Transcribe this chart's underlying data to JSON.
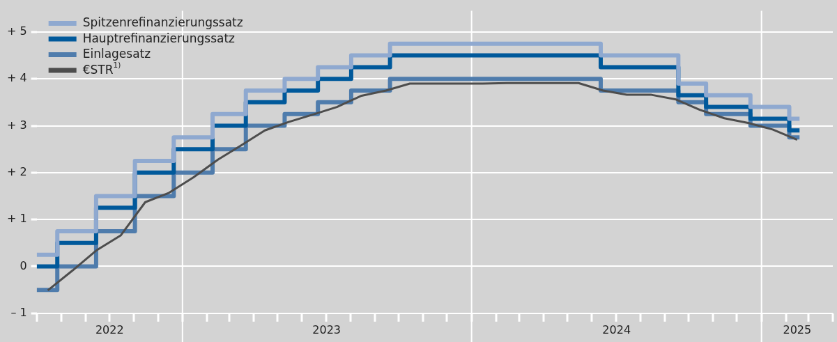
{
  "chart_data": {
    "type": "step",
    "series": [
      {
        "name": "Spitzenrefinanzierungssatz",
        "color": "#8fa9d0",
        "x": [
          "2022-07-01",
          "2022-07-27",
          "2022-09-14",
          "2022-11-02",
          "2022-12-21",
          "2023-02-08",
          "2023-03-22",
          "2023-05-10",
          "2023-06-21",
          "2023-08-02",
          "2023-09-20",
          "2024-06-12",
          "2024-09-18",
          "2024-10-23",
          "2024-12-18",
          "2025-02-05",
          "2025-02-18"
        ],
        "values": [
          0.25,
          0.75,
          1.5,
          2.25,
          2.75,
          3.25,
          3.75,
          4.0,
          4.25,
          4.5,
          4.75,
          4.5,
          3.9,
          3.65,
          3.4,
          3.15,
          3.15
        ]
      },
      {
        "name": "Hauptrefinanzierungssatz",
        "color": "#00599b",
        "x": [
          "2022-07-01",
          "2022-07-27",
          "2022-09-14",
          "2022-11-02",
          "2022-12-21",
          "2023-02-08",
          "2023-03-22",
          "2023-05-10",
          "2023-06-21",
          "2023-08-02",
          "2023-09-20",
          "2024-06-12",
          "2024-09-18",
          "2024-10-23",
          "2024-12-18",
          "2025-02-05",
          "2025-02-18"
        ],
        "values": [
          0,
          0.5,
          1.25,
          2.0,
          2.5,
          3.0,
          3.5,
          3.75,
          4.0,
          4.25,
          4.5,
          4.25,
          3.65,
          3.4,
          3.15,
          2.9,
          2.9
        ]
      },
      {
        "name": "Einlagesatz",
        "color": "#4f7cac",
        "x": [
          "2022-07-01",
          "2022-07-27",
          "2022-09-14",
          "2022-11-02",
          "2022-12-21",
          "2023-02-08",
          "2023-03-22",
          "2023-05-10",
          "2023-06-21",
          "2023-08-02",
          "2023-09-20",
          "2024-06-12",
          "2024-09-18",
          "2024-10-23",
          "2024-12-18",
          "2025-02-05",
          "2025-02-18"
        ],
        "values": [
          -0.5,
          0,
          0.75,
          1.5,
          2.0,
          2.5,
          3.0,
          3.25,
          3.5,
          3.75,
          4.0,
          3.75,
          3.5,
          3.25,
          3.0,
          2.75,
          2.75
        ]
      },
      {
        "name": "€STR$^{1)}$",
        "type": "line",
        "color": "#4d4d4d",
        "x": [
          "2022-07-15",
          "2022-08-15",
          "2022-09-15",
          "2022-10-15",
          "2022-11-15",
          "2022-12-15",
          "2023-01-15",
          "2023-02-15",
          "2023-03-15",
          "2023-04-15",
          "2023-05-15",
          "2023-06-15",
          "2023-07-15",
          "2023-08-15",
          "2023-09-15",
          "2023-10-15",
          "2023-11-15",
          "2023-12-15",
          "2024-01-15",
          "2024-02-15",
          "2024-03-15",
          "2024-04-15",
          "2024-05-15",
          "2024-06-15",
          "2024-07-15",
          "2024-08-15",
          "2024-09-15",
          "2024-10-15",
          "2024-11-15",
          "2024-12-15",
          "2025-01-15",
          "2025-02-15"
        ],
        "values": [
          -0.51,
          -0.09,
          0.35,
          0.66,
          1.37,
          1.57,
          1.9,
          2.28,
          2.57,
          2.9,
          3.08,
          3.24,
          3.4,
          3.64,
          3.75,
          3.9,
          3.9,
          3.9,
          3.9,
          3.91,
          3.91,
          3.91,
          3.91,
          3.75,
          3.66,
          3.66,
          3.56,
          3.34,
          3.16,
          3.06,
          2.92,
          2.7
        ]
      }
    ],
    "xlim": [
      "2022-07-01",
      "2025-04-01"
    ],
    "xticks": [
      {
        "value": "2022-07-01",
        "label": null
      },
      {
        "value": "2022-08-01",
        "label": null
      },
      {
        "value": "2022-09-01",
        "label": null
      },
      {
        "value": "2022-10-01",
        "label": null
      },
      {
        "value": "2022-11-01",
        "label": null
      },
      {
        "value": "2022-12-01",
        "label": null
      },
      {
        "value": "2023-01-01",
        "label": null
      },
      {
        "value": "2023-02-01",
        "label": null
      },
      {
        "value": "2023-03-01",
        "label": null
      },
      {
        "value": "2023-04-01",
        "label": null
      },
      {
        "value": "2023-05-01",
        "label": null
      },
      {
        "value": "2023-06-01",
        "label": null
      },
      {
        "value": "2023-07-01",
        "label": null
      },
      {
        "value": "2023-08-01",
        "label": null
      },
      {
        "value": "2023-09-01",
        "label": null
      },
      {
        "value": "2023-10-01",
        "label": null
      },
      {
        "value": "2023-11-01",
        "label": null
      },
      {
        "value": "2023-12-01",
        "label": null
      },
      {
        "value": "2024-01-01",
        "label": null
      },
      {
        "value": "2024-02-01",
        "label": null
      },
      {
        "value": "2024-03-01",
        "label": null
      },
      {
        "value": "2024-04-01",
        "label": null
      },
      {
        "value": "2024-05-01",
        "label": null
      },
      {
        "value": "2024-06-01",
        "label": null
      },
      {
        "value": "2024-07-01",
        "label": null
      },
      {
        "value": "2024-08-01",
        "label": null
      },
      {
        "value": "2024-09-01",
        "label": null
      },
      {
        "value": "2024-10-01",
        "label": null
      },
      {
        "value": "2024-11-01",
        "label": null
      },
      {
        "value": "2024-12-01",
        "label": null
      },
      {
        "value": "2025-01-01",
        "label": null
      },
      {
        "value": "2025-02-01",
        "label": null
      },
      {
        "value": "2025-03-01",
        "label": null
      },
      {
        "value": "2025-04-01",
        "label": null
      },
      {
        "value": "2022-10-01",
        "label": "2022"
      },
      {
        "value": "2023-07-02",
        "label": "2023"
      },
      {
        "value": "2024-07-02",
        "label": "2024"
      },
      {
        "value": "2025-02-15",
        "label": "2025"
      }
    ],
    "ylim": [
      -1,
      5.45
    ],
    "yticks": [
      {
        "value": -1,
        "label": "– 1"
      },
      0,
      {
        "value": 1,
        "label": "+ 1"
      },
      {
        "value": 2,
        "label": "+ 2"
      },
      {
        "value": 3,
        "label": "+ 3"
      },
      {
        "value": 4,
        "label": "+ 4"
      },
      {
        "value": 5,
        "label": "+ 5"
      }
    ],
    "ref_lines": [
      {
        "axis": "x",
        "value": "2023-01-01",
        "color": "#ffffff"
      },
      {
        "axis": "x",
        "value": "2024-01-01",
        "color": "#ffffff"
      },
      {
        "axis": "x",
        "value": "2025-01-01",
        "color": "#ffffff"
      }
    ],
    "grid": "y",
    "legend": "top left"
  }
}
